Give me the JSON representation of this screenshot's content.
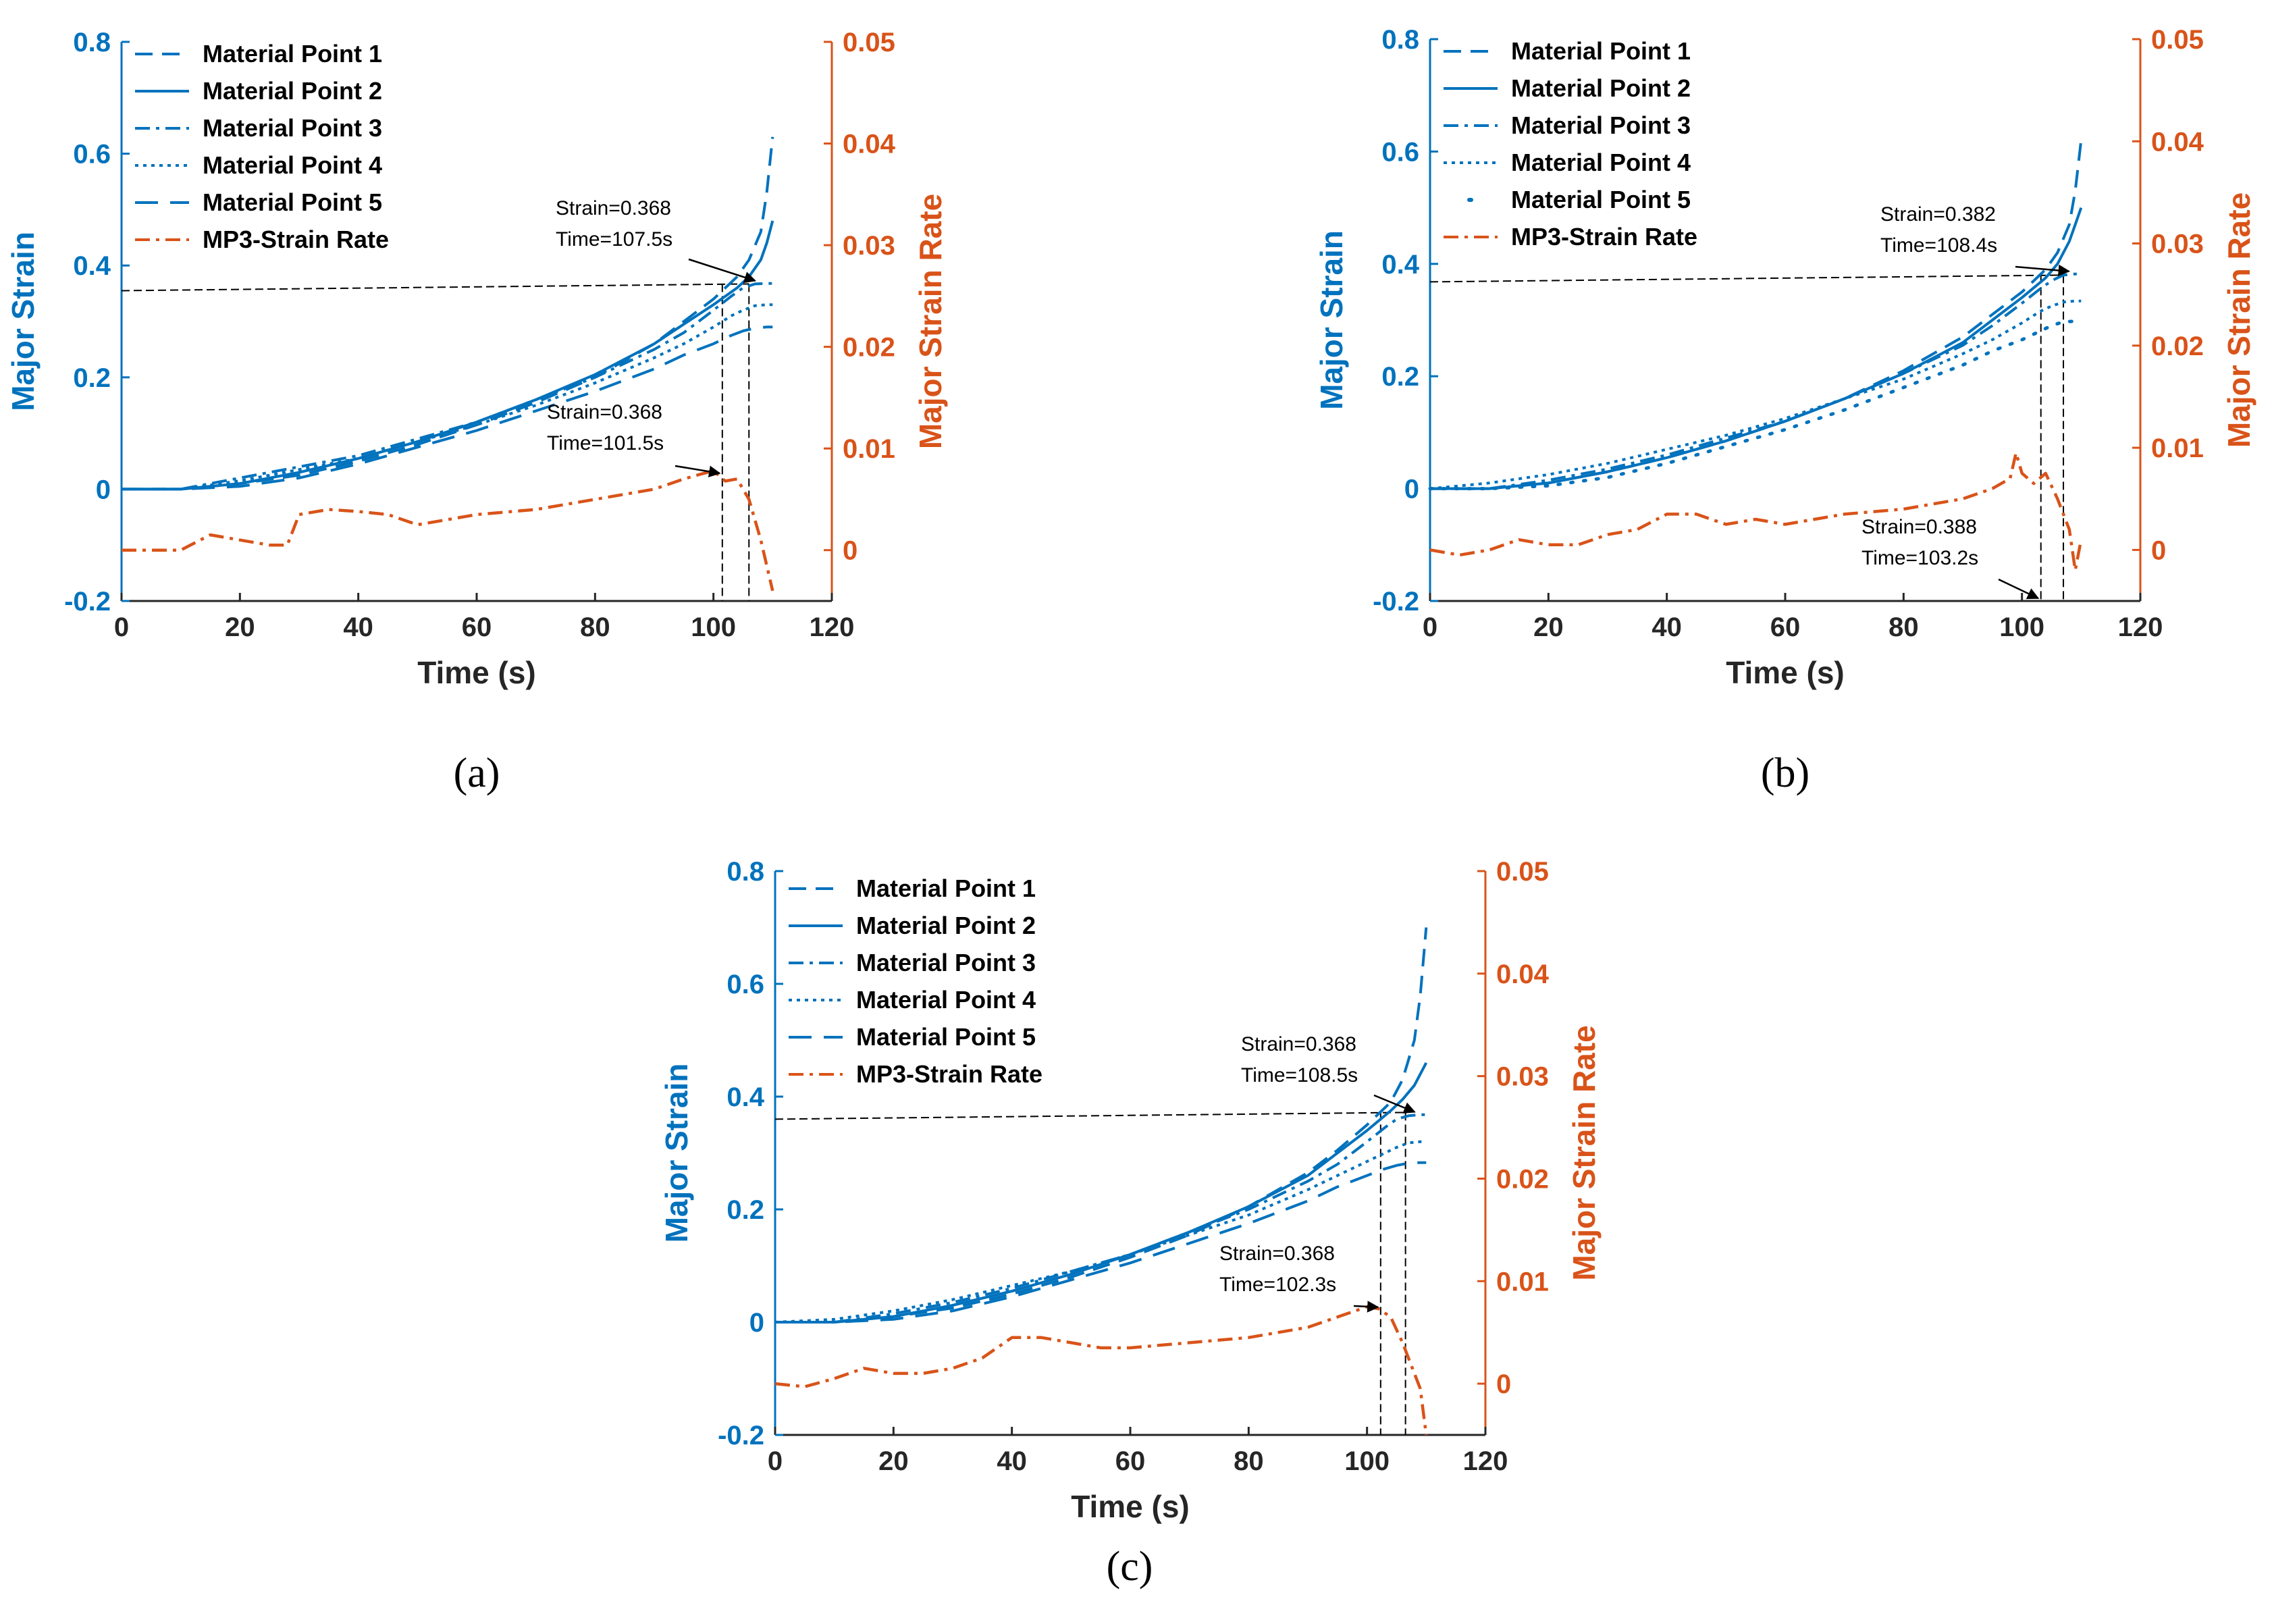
{
  "colors": {
    "strain": "#0072BD",
    "rate": "#D95319",
    "guide": "#000000"
  },
  "legend_entries": [
    "Material Point 1",
    "Material Point 2",
    "Material Point 3",
    "Material Point 4",
    "Material Point 5",
    "MP3-Strain Rate"
  ],
  "chart_data": [
    {
      "type": "line",
      "caption": "(a)",
      "xlabel": "Time (s)",
      "ylabel": "Major Strain",
      "y2label": "Major Strain Rate",
      "xlim": [
        0,
        120
      ],
      "ylim": [
        -0.2,
        0.8
      ],
      "y2lim": [
        -0.005,
        0.05
      ],
      "xticks": [
        "0",
        "20",
        "40",
        "60",
        "80",
        "100",
        "120"
      ],
      "yticks": [
        "-0.2",
        "0",
        "0.2",
        "0.4",
        "0.6",
        "0.8"
      ],
      "y2ticks": [
        "0",
        "0.01",
        "0.02",
        "0.03",
        "0.04",
        "0.05"
      ],
      "series": [
        {
          "name": "Material Point 1",
          "style": "dash",
          "x": [
            0,
            10,
            20,
            30,
            40,
            50,
            60,
            70,
            80,
            90,
            95,
            100,
            104,
            106,
            108,
            109,
            110
          ],
          "y": [
            0,
            0,
            0.01,
            0.025,
            0.05,
            0.08,
            0.115,
            0.155,
            0.2,
            0.26,
            0.3,
            0.34,
            0.38,
            0.41,
            0.46,
            0.53,
            0.63
          ]
        },
        {
          "name": "Material Point 2",
          "style": "solid",
          "x": [
            0,
            10,
            20,
            30,
            40,
            50,
            60,
            70,
            80,
            90,
            95,
            100,
            104,
            106,
            108,
            109,
            110
          ],
          "y": [
            0,
            0,
            0.01,
            0.03,
            0.055,
            0.085,
            0.12,
            0.16,
            0.205,
            0.26,
            0.295,
            0.33,
            0.36,
            0.38,
            0.41,
            0.44,
            0.48
          ]
        },
        {
          "name": "Material Point 3",
          "style": "dashdot",
          "x": [
            0,
            10,
            20,
            30,
            40,
            50,
            60,
            70,
            80,
            90,
            95,
            100,
            103,
            105,
            107,
            109,
            110
          ],
          "y": [
            0,
            0,
            0.02,
            0.04,
            0.06,
            0.09,
            0.12,
            0.16,
            0.2,
            0.25,
            0.28,
            0.32,
            0.345,
            0.36,
            0.367,
            0.368,
            0.368
          ]
        },
        {
          "name": "Material Point 4",
          "style": "dot",
          "x": [
            0,
            10,
            20,
            30,
            40,
            50,
            60,
            70,
            80,
            90,
            95,
            100,
            103,
            105,
            107,
            109,
            110
          ],
          "y": [
            0,
            0,
            0.015,
            0.035,
            0.055,
            0.085,
            0.115,
            0.15,
            0.19,
            0.235,
            0.26,
            0.29,
            0.31,
            0.32,
            0.328,
            0.33,
            0.33
          ]
        },
        {
          "name": "Material Point 5",
          "style": "longdash",
          "x": [
            0,
            10,
            20,
            30,
            40,
            50,
            60,
            70,
            80,
            90,
            95,
            100,
            103,
            105,
            107,
            109,
            110
          ],
          "y": [
            0,
            0,
            0.005,
            0.02,
            0.045,
            0.075,
            0.105,
            0.14,
            0.175,
            0.215,
            0.24,
            0.26,
            0.275,
            0.283,
            0.288,
            0.29,
            0.29
          ]
        },
        {
          "name": "MP3-Strain Rate",
          "axis": "right",
          "style": "dashdot",
          "x": [
            0,
            5,
            10,
            15,
            20,
            25,
            28,
            30,
            35,
            40,
            45,
            50,
            55,
            60,
            70,
            80,
            90,
            95,
            98,
            100,
            102,
            104,
            106,
            108,
            110
          ],
          "y": [
            0,
            0,
            0,
            0.0015,
            0.001,
            0.0005,
            0.0005,
            0.0035,
            0.004,
            0.0038,
            0.0035,
            0.0025,
            0.003,
            0.0035,
            0.004,
            0.005,
            0.006,
            0.007,
            0.0075,
            0.0078,
            0.0068,
            0.007,
            0.005,
            0.001,
            -0.004
          ]
        }
      ],
      "guides": {
        "strain_value": 0.355,
        "x_start": 0,
        "x_end": 106,
        "vlines_x": [
          101.5,
          106
        ]
      },
      "annotations": [
        {
          "line1": "Strain=0.368",
          "line2": "Time=107.5s"
        },
        {
          "line1": "Strain=0.368",
          "line2": "Time=101.5s"
        }
      ]
    },
    {
      "type": "line",
      "caption": "(b)",
      "xlabel": "Time (s)",
      "ylabel": "Major Strain",
      "y2label": "Major Strain Rate",
      "xlim": [
        0,
        120
      ],
      "ylim": [
        -0.2,
        0.8
      ],
      "y2lim": [
        -0.005,
        0.05
      ],
      "xticks": [
        "0",
        "20",
        "40",
        "60",
        "80",
        "100",
        "120"
      ],
      "yticks": [
        "-0.2",
        "0",
        "0.2",
        "0.4",
        "0.6",
        "0.8"
      ],
      "y2ticks": [
        "0",
        "0.01",
        "0.02",
        "0.03",
        "0.04",
        "0.05"
      ],
      "series": [
        {
          "name": "Material Point 1",
          "style": "dash",
          "x": [
            0,
            10,
            20,
            30,
            40,
            50,
            60,
            70,
            80,
            90,
            95,
            100,
            104,
            106,
            108,
            109,
            110
          ],
          "y": [
            0,
            0,
            0.01,
            0.03,
            0.055,
            0.085,
            0.12,
            0.16,
            0.21,
            0.27,
            0.31,
            0.35,
            0.39,
            0.42,
            0.47,
            0.53,
            0.62
          ]
        },
        {
          "name": "Material Point 2",
          "style": "solid",
          "x": [
            0,
            10,
            20,
            30,
            40,
            50,
            60,
            70,
            80,
            90,
            95,
            100,
            104,
            106,
            108,
            109,
            110
          ],
          "y": [
            0,
            0,
            0.01,
            0.03,
            0.055,
            0.085,
            0.12,
            0.16,
            0.205,
            0.26,
            0.3,
            0.34,
            0.375,
            0.4,
            0.44,
            0.47,
            0.5
          ]
        },
        {
          "name": "Material Point 3",
          "style": "dashdot",
          "x": [
            0,
            10,
            20,
            30,
            40,
            50,
            60,
            70,
            80,
            90,
            95,
            100,
            103,
            105,
            107,
            109,
            110
          ],
          "y": [
            0,
            0,
            0.015,
            0.035,
            0.06,
            0.09,
            0.12,
            0.16,
            0.205,
            0.255,
            0.29,
            0.33,
            0.355,
            0.37,
            0.38,
            0.382,
            0.382
          ]
        },
        {
          "name": "Material Point 4",
          "style": "dot",
          "x": [
            0,
            10,
            20,
            30,
            40,
            50,
            60,
            70,
            80,
            90,
            95,
            100,
            103,
            105,
            107,
            109,
            110
          ],
          "y": [
            0,
            0.01,
            0.025,
            0.045,
            0.07,
            0.095,
            0.125,
            0.16,
            0.195,
            0.24,
            0.265,
            0.295,
            0.315,
            0.325,
            0.332,
            0.334,
            0.334
          ]
        },
        {
          "name": "Material Point 5",
          "style": "dot-sparse",
          "x": [
            0,
            10,
            20,
            30,
            40,
            50,
            60,
            70,
            80,
            90,
            95,
            100,
            103,
            105,
            107,
            109,
            110
          ],
          "y": [
            0,
            0,
            0.005,
            0.02,
            0.045,
            0.075,
            0.105,
            0.14,
            0.18,
            0.22,
            0.245,
            0.265,
            0.28,
            0.29,
            0.297,
            0.298,
            0.298
          ]
        },
        {
          "name": "MP3-Strain Rate",
          "axis": "right",
          "style": "dashdot",
          "x": [
            0,
            5,
            10,
            15,
            20,
            25,
            30,
            35,
            40,
            45,
            50,
            55,
            60,
            70,
            80,
            90,
            95,
            98,
            99,
            100,
            102,
            104,
            106,
            108,
            109,
            110
          ],
          "y": [
            0,
            -0.0005,
            0,
            0.001,
            0.0005,
            0.0005,
            0.0015,
            0.002,
            0.0035,
            0.0035,
            0.0025,
            0.003,
            0.0025,
            0.0035,
            0.004,
            0.005,
            0.006,
            0.007,
            0.0095,
            0.0075,
            0.0065,
            0.0075,
            0.005,
            0.002,
            -0.002,
            0.001
          ]
        }
      ],
      "guides": {
        "strain_value": 0.368,
        "x_start": 0,
        "x_end": 107,
        "vlines_x": [
          103.2,
          107
        ]
      },
      "annotations": [
        {
          "line1": "Strain=0.382",
          "line2": "Time=108.4s"
        },
        {
          "line1": "Strain=0.388",
          "line2": "Time=103.2s"
        }
      ]
    },
    {
      "type": "line",
      "caption": "(c)",
      "xlabel": "Time (s)",
      "ylabel": "Major Strain",
      "y2label": "Major Strain Rate",
      "xlim": [
        0,
        120
      ],
      "ylim": [
        -0.2,
        0.8
      ],
      "y2lim": [
        -0.005,
        0.05
      ],
      "xticks": [
        "0",
        "20",
        "40",
        "60",
        "80",
        "100",
        "120"
      ],
      "yticks": [
        "-0.2",
        "0",
        "0.2",
        "0.4",
        "0.6",
        "0.8"
      ],
      "y2ticks": [
        "0",
        "0.01",
        "0.02",
        "0.03",
        "0.04",
        "0.05"
      ],
      "series": [
        {
          "name": "Material Point 1",
          "style": "dash",
          "x": [
            0,
            10,
            20,
            30,
            40,
            50,
            60,
            70,
            80,
            90,
            95,
            100,
            104,
            106,
            108,
            109,
            110
          ],
          "y": [
            0,
            0,
            0.01,
            0.025,
            0.05,
            0.08,
            0.115,
            0.155,
            0.205,
            0.265,
            0.305,
            0.35,
            0.39,
            0.43,
            0.5,
            0.58,
            0.7
          ]
        },
        {
          "name": "Material Point 2",
          "style": "solid",
          "x": [
            0,
            10,
            20,
            30,
            40,
            50,
            60,
            70,
            80,
            90,
            95,
            100,
            104,
            106,
            108,
            109,
            110
          ],
          "y": [
            0,
            0,
            0.01,
            0.03,
            0.055,
            0.085,
            0.12,
            0.16,
            0.205,
            0.26,
            0.3,
            0.34,
            0.375,
            0.395,
            0.42,
            0.44,
            0.46
          ]
        },
        {
          "name": "Material Point 3",
          "style": "dashdot",
          "x": [
            0,
            10,
            20,
            30,
            40,
            50,
            60,
            70,
            80,
            90,
            95,
            100,
            103,
            105,
            107,
            109,
            110
          ],
          "y": [
            0,
            0,
            0.015,
            0.035,
            0.06,
            0.09,
            0.12,
            0.16,
            0.2,
            0.25,
            0.28,
            0.32,
            0.345,
            0.36,
            0.366,
            0.368,
            0.368
          ]
        },
        {
          "name": "Material Point 4",
          "style": "dot",
          "x": [
            0,
            10,
            20,
            30,
            40,
            50,
            60,
            70,
            80,
            90,
            95,
            100,
            103,
            105,
            107,
            109,
            110
          ],
          "y": [
            0,
            0.005,
            0.02,
            0.04,
            0.065,
            0.09,
            0.12,
            0.155,
            0.19,
            0.235,
            0.26,
            0.285,
            0.3,
            0.31,
            0.318,
            0.32,
            0.32
          ]
        },
        {
          "name": "Material Point 5",
          "style": "longdash",
          "x": [
            0,
            10,
            20,
            30,
            40,
            50,
            60,
            70,
            80,
            90,
            95,
            100,
            103,
            105,
            107,
            109,
            110
          ],
          "y": [
            0,
            0,
            0.005,
            0.02,
            0.045,
            0.075,
            0.105,
            0.14,
            0.175,
            0.215,
            0.24,
            0.26,
            0.272,
            0.278,
            0.282,
            0.283,
            0.283
          ]
        },
        {
          "name": "MP3-Strain Rate",
          "axis": "right",
          "style": "dashdot",
          "x": [
            0,
            5,
            10,
            15,
            20,
            25,
            30,
            35,
            40,
            45,
            50,
            55,
            60,
            70,
            80,
            90,
            95,
            100,
            102,
            104,
            106,
            108,
            109,
            110
          ],
          "y": [
            0,
            -0.0003,
            0.0005,
            0.0015,
            0.001,
            0.001,
            0.0015,
            0.0025,
            0.0045,
            0.0045,
            0.004,
            0.0035,
            0.0035,
            0.004,
            0.0045,
            0.0055,
            0.0065,
            0.0075,
            0.0073,
            0.0065,
            0.004,
            0.001,
            -0.0005,
            -0.005
          ]
        }
      ],
      "guides": {
        "strain_value": 0.36,
        "x_start": 0,
        "x_end": 106.5,
        "vlines_x": [
          102.3,
          106.5
        ]
      },
      "annotations": [
        {
          "line1": "Strain=0.368",
          "line2": "Time=108.5s"
        },
        {
          "line1": "Strain=0.368",
          "line2": "Time=102.3s"
        }
      ]
    }
  ]
}
